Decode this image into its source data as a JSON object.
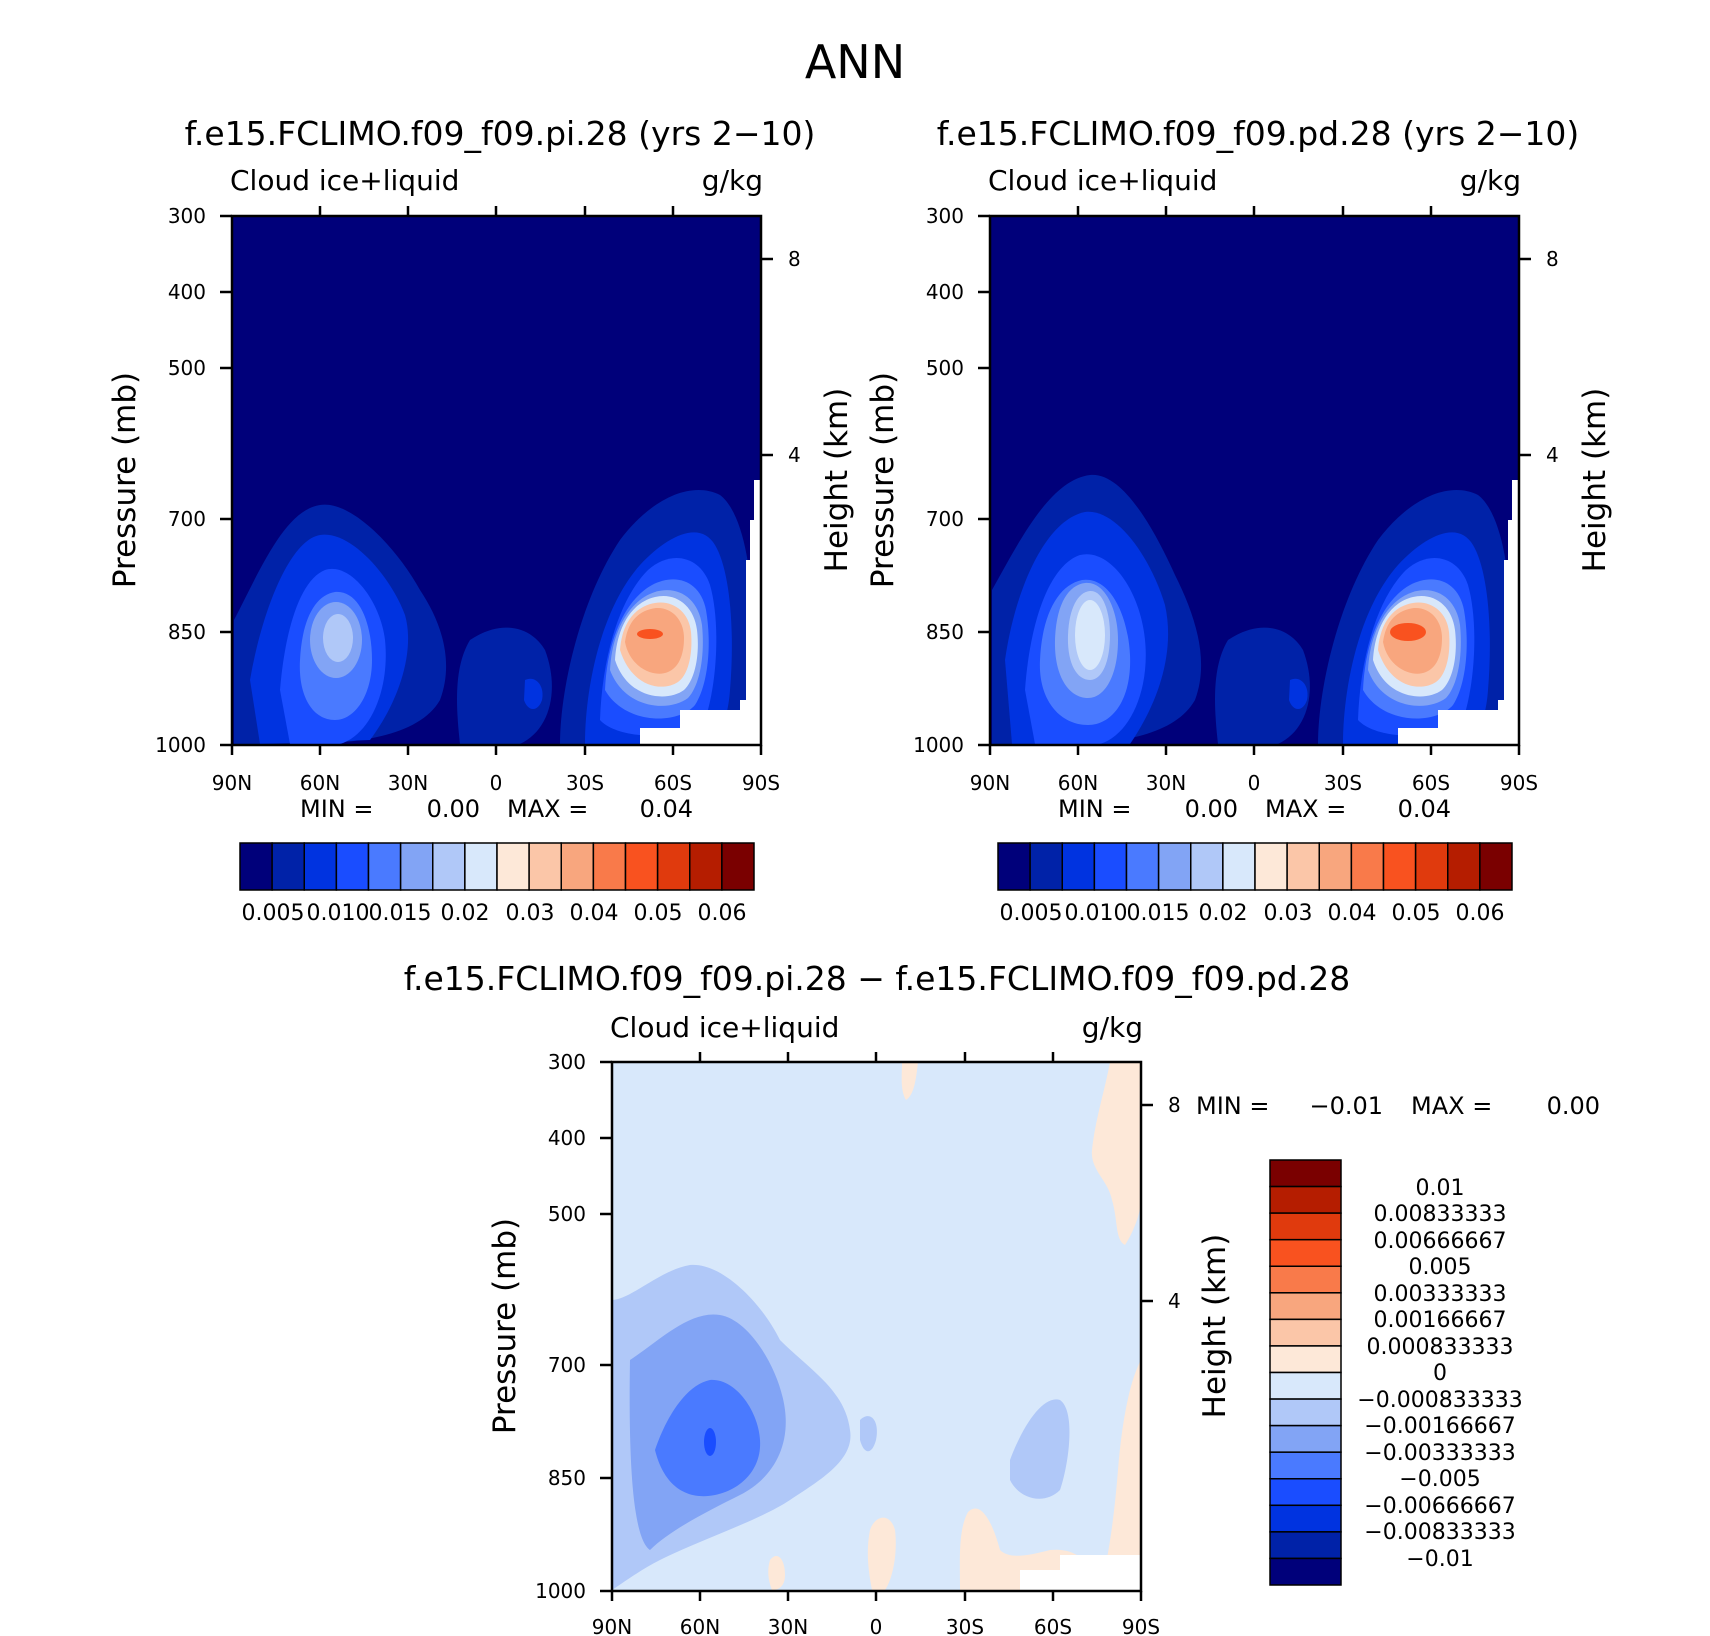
{
  "figure": {
    "title": "ANN"
  },
  "chart_data": [
    {
      "type": "heatmap",
      "title": "f.e15.FCLIMO.f09_f09.pi.28 (yrs 2−10)",
      "variable_label": "Cloud ice+liquid",
      "units_label": "g/kg",
      "xlabel": "",
      "ylabel": "Pressure (mb)",
      "y2label": "Height (km)",
      "x_ticks": [
        "90N",
        "60N",
        "30N",
        "0",
        "30S",
        "60S",
        "90S"
      ],
      "y_ticks": [
        "300",
        "400",
        "500",
        "700",
        "850",
        "1000"
      ],
      "y2_ticks": [
        "8",
        "4"
      ],
      "min_label": "MIN =",
      "min_value": "0.00",
      "max_label": "MAX =",
      "max_value": "0.04",
      "colorbar_orientation": "horizontal",
      "colorbar_labels": [
        "0.005",
        "0.010",
        "0.015",
        "0.02",
        "0.03",
        "0.04",
        "0.05",
        "0.06"
      ],
      "peaks": [
        {
          "lat": -50,
          "p": 850,
          "value": 0.04
        },
        {
          "lat": 58,
          "p": 850,
          "value": 0.02
        }
      ]
    },
    {
      "type": "heatmap",
      "title": "f.e15.FCLIMO.f09_f09.pd.28 (yrs 2−10)",
      "variable_label": "Cloud ice+liquid",
      "units_label": "g/kg",
      "xlabel": "",
      "ylabel": "Pressure (mb)",
      "y2label": "Height (km)",
      "x_ticks": [
        "90N",
        "60N",
        "30N",
        "0",
        "30S",
        "60S",
        "90S"
      ],
      "y_ticks": [
        "300",
        "400",
        "500",
        "700",
        "850",
        "1000"
      ],
      "y2_ticks": [
        "8",
        "4"
      ],
      "min_label": "MIN =",
      "min_value": "0.00",
      "max_label": "MAX =",
      "max_value": "0.04",
      "colorbar_orientation": "horizontal",
      "colorbar_labels": [
        "0.005",
        "0.010",
        "0.015",
        "0.02",
        "0.03",
        "0.04",
        "0.05",
        "0.06"
      ],
      "peaks": [
        {
          "lat": -50,
          "p": 850,
          "value": 0.04
        },
        {
          "lat": 58,
          "p": 850,
          "value": 0.025
        }
      ]
    },
    {
      "type": "heatmap",
      "title": "f.e15.FCLIMO.f09_f09.pi.28 − f.e15.FCLIMO.f09_f09.pd.28",
      "variable_label": "Cloud ice+liquid",
      "units_label": "g/kg",
      "xlabel": "",
      "ylabel": "Pressure (mb)",
      "y2label": "Height (km)",
      "x_ticks": [
        "90N",
        "60N",
        "30N",
        "0",
        "30S",
        "60S",
        "90S"
      ],
      "y_ticks": [
        "300",
        "400",
        "500",
        "700",
        "850",
        "1000"
      ],
      "y2_ticks": [
        "8",
        "4"
      ],
      "min_label": "MIN =",
      "min_value": "−0.01",
      "max_label": "MAX =",
      "max_value": "0.00",
      "colorbar_orientation": "vertical",
      "colorbar_labels": [
        "0.01",
        "0.00833333",
        "0.00666667",
        "0.005",
        "0.00333333",
        "0.00166667",
        "0.000833333",
        "0",
        "−0.000833333",
        "−0.00166667",
        "−0.00333333",
        "−0.005",
        "−0.00666667",
        "−0.00833333",
        "−0.01"
      ]
    }
  ],
  "colors": {
    "colorbar_top": [
      "#00007a",
      "#0022a8",
      "#0033e0",
      "#1a4dff",
      "#4a7aff",
      "#82a4f5",
      "#b0c8f8",
      "#d8e8fb",
      "#fde8d8",
      "#fbc6a8",
      "#f8a67e",
      "#f97a4a",
      "#f9521f",
      "#e03a0d",
      "#b51d00",
      "#7a0000"
    ],
    "colorbar_diff": [
      "#7a0000",
      "#b51d00",
      "#e03a0d",
      "#f9521f",
      "#f97a4a",
      "#f8a67e",
      "#fbc6a8",
      "#fde8d8",
      "#d8e8fb",
      "#b0c8f8",
      "#82a4f5",
      "#4a7aff",
      "#1a4dff",
      "#0033e0",
      "#0022a8",
      "#00007a"
    ]
  }
}
